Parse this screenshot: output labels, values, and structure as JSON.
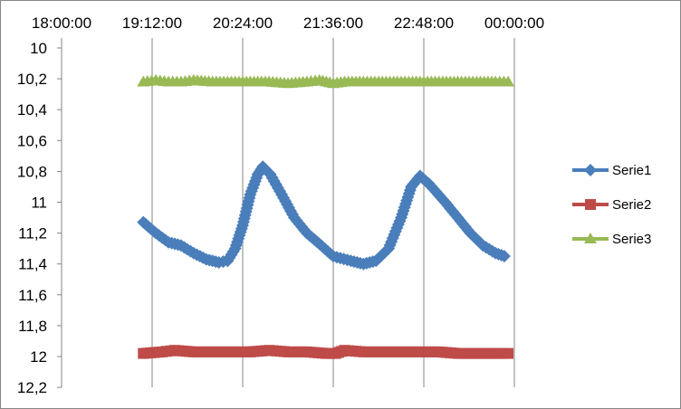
{
  "chart_data": {
    "type": "line",
    "x_axis": {
      "position": "top",
      "type": "time",
      "min": "18:00:00",
      "max": "00:00:00",
      "tick_labels": [
        "18:00:00",
        "19:12:00",
        "20:24:00",
        "21:36:00",
        "22:48:00",
        "00:00:00"
      ]
    },
    "y_axis": {
      "reversed": true,
      "min": 10,
      "max": 12.2,
      "tick_labels": [
        "10",
        "10,2",
        "10,4",
        "10,6",
        "10,8",
        "11",
        "11,2",
        "11,4",
        "11,6",
        "11,8",
        "12",
        "12,2"
      ]
    },
    "grid": {
      "vertical": true,
      "horizontal": false
    },
    "legend": {
      "placement": "right"
    },
    "series": [
      {
        "name": "Serie1",
        "color": "#4a7ebb",
        "marker": "diamond",
        "points": [
          [
            "19:05",
            11.13
          ],
          [
            "19:15",
            11.2
          ],
          [
            "19:25",
            11.26
          ],
          [
            "19:35",
            11.28
          ],
          [
            "19:45",
            11.33
          ],
          [
            "19:55",
            11.37
          ],
          [
            "20:05",
            11.39
          ],
          [
            "20:12",
            11.38
          ],
          [
            "20:18",
            11.3
          ],
          [
            "20:24",
            11.15
          ],
          [
            "20:30",
            10.95
          ],
          [
            "20:36",
            10.82
          ],
          [
            "20:40",
            10.77
          ],
          [
            "20:46",
            10.82
          ],
          [
            "20:55",
            10.95
          ],
          [
            "21:05",
            11.1
          ],
          [
            "21:15",
            11.2
          ],
          [
            "21:25",
            11.27
          ],
          [
            "21:36",
            11.35
          ],
          [
            "21:50",
            11.38
          ],
          [
            "22:00",
            11.4
          ],
          [
            "22:10",
            11.38
          ],
          [
            "22:20",
            11.3
          ],
          [
            "22:30",
            11.1
          ],
          [
            "22:38",
            10.9
          ],
          [
            "22:45",
            10.83
          ],
          [
            "22:52",
            10.88
          ],
          [
            "23:05",
            11.0
          ],
          [
            "23:15",
            11.1
          ],
          [
            "23:25",
            11.2
          ],
          [
            "23:35",
            11.28
          ],
          [
            "23:45",
            11.33
          ],
          [
            "23:52",
            11.35
          ]
        ]
      },
      {
        "name": "Serie2",
        "color": "#be4b48",
        "marker": "square",
        "points": [
          [
            "19:05",
            11.98
          ],
          [
            "19:20",
            11.97
          ],
          [
            "19:30",
            11.96
          ],
          [
            "19:45",
            11.97
          ],
          [
            "20:00",
            11.97
          ],
          [
            "20:15",
            11.97
          ],
          [
            "20:30",
            11.97
          ],
          [
            "20:45",
            11.96
          ],
          [
            "21:00",
            11.97
          ],
          [
            "21:15",
            11.97
          ],
          [
            "21:30",
            11.98
          ],
          [
            "21:38",
            11.98
          ],
          [
            "21:45",
            11.96
          ],
          [
            "22:00",
            11.97
          ],
          [
            "22:15",
            11.97
          ],
          [
            "22:30",
            11.97
          ],
          [
            "22:45",
            11.97
          ],
          [
            "23:00",
            11.97
          ],
          [
            "23:15",
            11.98
          ],
          [
            "23:30",
            11.98
          ],
          [
            "23:45",
            11.98
          ],
          [
            "23:55",
            11.98
          ]
        ]
      },
      {
        "name": "Serie3",
        "color": "#98b954",
        "marker": "triangle",
        "points": [
          [
            "19:05",
            10.22
          ],
          [
            "19:15",
            10.21
          ],
          [
            "19:25",
            10.22
          ],
          [
            "19:35",
            10.22
          ],
          [
            "19:45",
            10.21
          ],
          [
            "20:00",
            10.22
          ],
          [
            "20:15",
            10.22
          ],
          [
            "20:30",
            10.22
          ],
          [
            "20:45",
            10.22
          ],
          [
            "21:00",
            10.23
          ],
          [
            "21:15",
            10.22
          ],
          [
            "21:25",
            10.21
          ],
          [
            "21:36",
            10.23
          ],
          [
            "21:45",
            10.22
          ],
          [
            "22:00",
            10.22
          ],
          [
            "22:15",
            10.22
          ],
          [
            "22:30",
            10.22
          ],
          [
            "22:45",
            10.22
          ],
          [
            "23:00",
            10.22
          ],
          [
            "23:15",
            10.22
          ],
          [
            "23:30",
            10.22
          ],
          [
            "23:45",
            10.22
          ],
          [
            "23:55",
            10.22
          ]
        ]
      }
    ]
  }
}
